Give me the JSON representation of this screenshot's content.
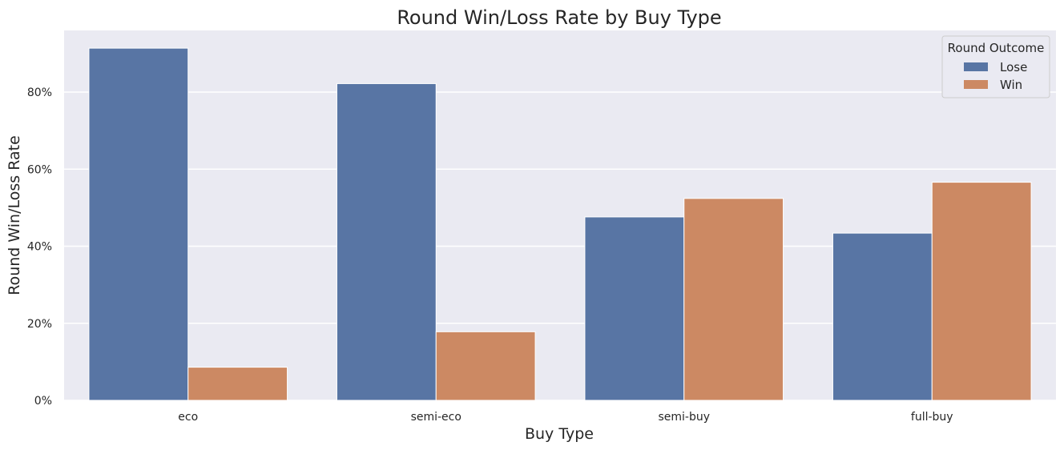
{
  "chart_data": {
    "type": "bar",
    "title": "Round Win/Loss Rate by Buy Type",
    "xlabel": "Buy Type",
    "ylabel": "Round Win/Loss Rate",
    "categories": [
      "eco",
      "semi-eco",
      "semi-buy",
      "full-buy"
    ],
    "series": [
      {
        "name": "Lose",
        "color": "#5875a4",
        "values": [
          91.4,
          82.2,
          47.6,
          43.4
        ]
      },
      {
        "name": "Win",
        "color": "#cc8963",
        "values": [
          8.6,
          17.8,
          52.4,
          56.6
        ]
      }
    ],
    "ylim": [
      0,
      96
    ],
    "yticks": [
      0,
      20,
      40,
      60,
      80
    ],
    "ytick_labels": [
      "0%",
      "20%",
      "40%",
      "60%",
      "80%"
    ],
    "grid": true,
    "background_color": "#eaeaf2",
    "legend": {
      "title": "Round Outcome",
      "placement": "top-right"
    }
  }
}
